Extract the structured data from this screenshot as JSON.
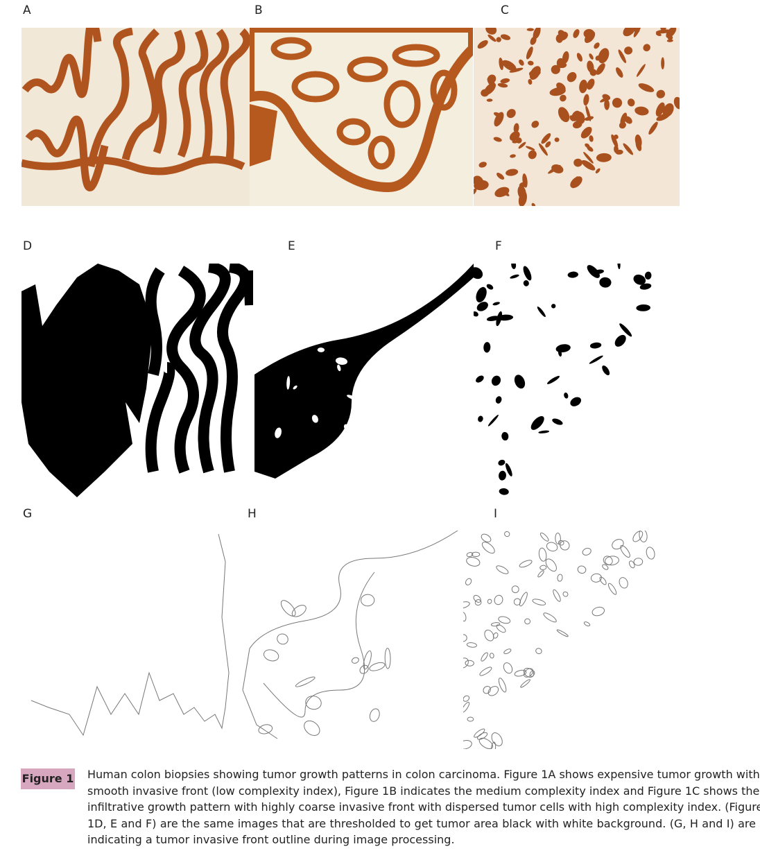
{
  "panels": [
    {
      "label": "A"
    },
    {
      "label": "B"
    },
    {
      "label": "C"
    },
    {
      "label": "D"
    },
    {
      "label": "E"
    },
    {
      "label": "F"
    },
    {
      "label": "G"
    },
    {
      "label": "H"
    },
    {
      "label": "I"
    }
  ],
  "figure": {
    "label": "Figure 1",
    "caption_lines": [
      "Human colon biopsies showing tumor growth patterns in colon carcinoma. Figure 1A shows expensive tumor growth with",
      "smooth invasive front (low complexity index), Figure 1B indicates the medium complexity index and Figure 1C shows the",
      "infiltrative growth pattern with highly coarse invasive front with dispersed tumor cells with high complexity index. (Figure",
      "1D, E and F) are the same images that are thresholded to get tumor area black with white background. (G, H and I) are",
      "indicating a tumor invasive front outline during image processing."
    ]
  }
}
